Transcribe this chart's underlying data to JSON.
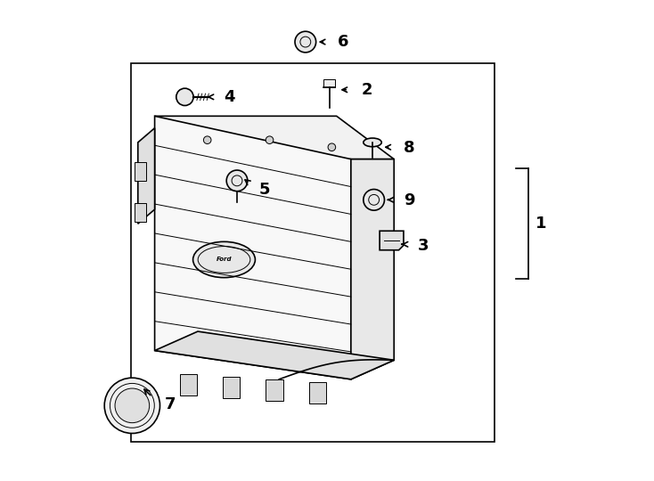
{
  "background_color": "#ffffff",
  "line_color": "#000000",
  "line_width": 1.2,
  "thin_line": 0.7,
  "fig_width": 7.34,
  "fig_height": 5.4,
  "dpi": 100
}
